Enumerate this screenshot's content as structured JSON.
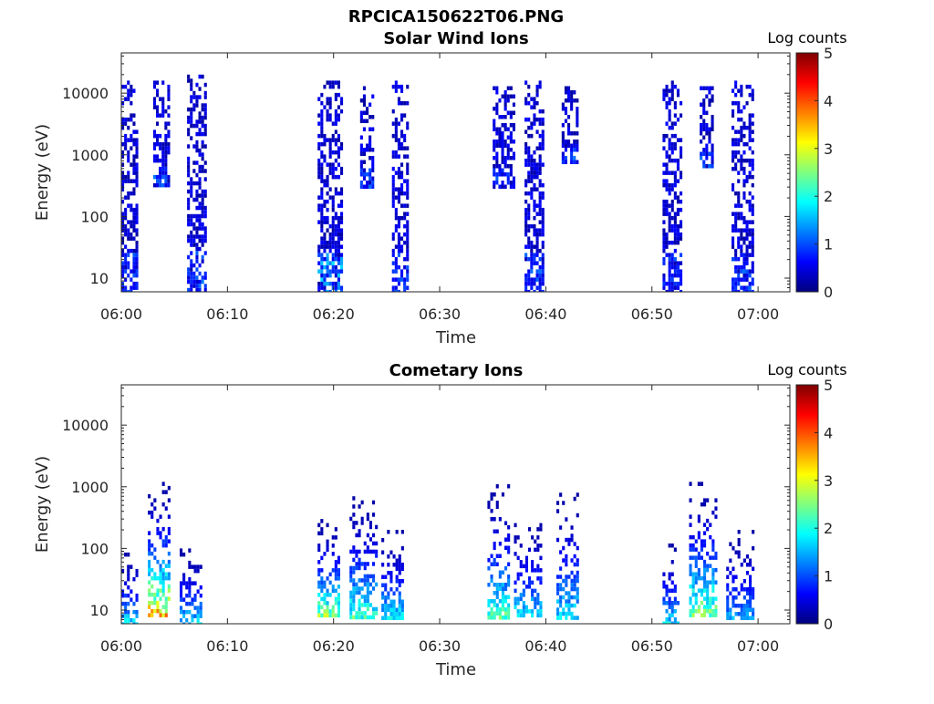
{
  "figure_title": "RPCICA150622T06.PNG",
  "colorbar_stops": [
    "#00007f",
    "#0000ff",
    "#007fff",
    "#00ffff",
    "#7fff7f",
    "#ffff00",
    "#ff7f00",
    "#ff0000",
    "#7f0000"
  ],
  "chart_data": [
    {
      "type": "heatmap",
      "title": "Solar Wind Ions",
      "xlabel": "Time",
      "ylabel": "Energy (eV)",
      "xlim": [
        "06:00",
        "07:03"
      ],
      "ylim": [
        6,
        45000
      ],
      "yscale": "log",
      "xticks": [
        "06:00",
        "06:10",
        "06:20",
        "06:30",
        "06:40",
        "06:50",
        "07:00"
      ],
      "yticks": [
        "10",
        "100",
        "1000",
        "10000"
      ],
      "colorbar": {
        "label": "Log counts",
        "range": [
          0,
          5
        ],
        "ticks": [
          "0",
          "1",
          "2",
          "3",
          "4",
          "5"
        ]
      },
      "bursts": [
        {
          "t_start": 0.0,
          "t_end": 1.5,
          "e_min": 6,
          "e_max": 16000,
          "peak_log_counts": 1
        },
        {
          "t_start": 3.0,
          "t_end": 4.5,
          "e_min": 300,
          "e_max": 16000,
          "peak_log_counts": 1
        },
        {
          "t_start": 6.2,
          "t_end": 7.8,
          "e_min": 6,
          "e_max": 20000,
          "peak_log_counts": 1
        },
        {
          "t_start": 18.5,
          "t_end": 20.8,
          "e_min": 6,
          "e_max": 16000,
          "peak_log_counts": 2
        },
        {
          "t_start": 22.5,
          "t_end": 23.8,
          "e_min": 300,
          "e_max": 13000,
          "peak_log_counts": 1
        },
        {
          "t_start": 25.5,
          "t_end": 27.0,
          "e_min": 6,
          "e_max": 16000,
          "peak_log_counts": 1
        },
        {
          "t_start": 35.0,
          "t_end": 37.0,
          "e_min": 300,
          "e_max": 13000,
          "peak_log_counts": 1
        },
        {
          "t_start": 38.0,
          "t_end": 39.8,
          "e_min": 6,
          "e_max": 16000,
          "peak_log_counts": 1
        },
        {
          "t_start": 41.5,
          "t_end": 43.0,
          "e_min": 800,
          "e_max": 13000,
          "peak_log_counts": 1
        },
        {
          "t_start": 51.0,
          "t_end": 52.8,
          "e_min": 6,
          "e_max": 16000,
          "peak_log_counts": 1
        },
        {
          "t_start": 54.5,
          "t_end": 55.8,
          "e_min": 700,
          "e_max": 13000,
          "peak_log_counts": 1
        },
        {
          "t_start": 57.5,
          "t_end": 59.5,
          "e_min": 6,
          "e_max": 16000,
          "peak_log_counts": 1
        }
      ]
    },
    {
      "type": "heatmap",
      "title": "Cometary Ions",
      "xlabel": "Time",
      "ylabel": "Energy (eV)",
      "xlim": [
        "06:00",
        "07:03"
      ],
      "ylim": [
        6,
        45000
      ],
      "yscale": "log",
      "xticks": [
        "06:00",
        "06:10",
        "06:20",
        "06:30",
        "06:40",
        "06:50",
        "07:00"
      ],
      "yticks": [
        "10",
        "100",
        "1000",
        "10000"
      ],
      "colorbar": {
        "label": "Log counts",
        "range": [
          0,
          5
        ],
        "ticks": [
          "0",
          "1",
          "2",
          "3",
          "4",
          "5"
        ]
      },
      "bursts": [
        {
          "t_start": 0.0,
          "t_end": 1.5,
          "e_min": 6,
          "e_max": 100,
          "peak_log_counts": 2
        },
        {
          "t_start": 2.5,
          "t_end": 4.5,
          "e_min": 8,
          "e_max": 1200,
          "peak_log_counts": 4
        },
        {
          "t_start": 5.5,
          "t_end": 7.5,
          "e_min": 6,
          "e_max": 100,
          "peak_log_counts": 2
        },
        {
          "t_start": 18.5,
          "t_end": 20.5,
          "e_min": 8,
          "e_max": 300,
          "peak_log_counts": 3
        },
        {
          "t_start": 21.5,
          "t_end": 24.0,
          "e_min": 8,
          "e_max": 700,
          "peak_log_counts": 2.5
        },
        {
          "t_start": 24.5,
          "t_end": 26.5,
          "e_min": 8,
          "e_max": 200,
          "peak_log_counts": 2
        },
        {
          "t_start": 34.5,
          "t_end": 36.5,
          "e_min": 8,
          "e_max": 1100,
          "peak_log_counts": 2.5
        },
        {
          "t_start": 37.0,
          "t_end": 39.5,
          "e_min": 8,
          "e_max": 300,
          "peak_log_counts": 2
        },
        {
          "t_start": 41.0,
          "t_end": 43.0,
          "e_min": 8,
          "e_max": 800,
          "peak_log_counts": 2
        },
        {
          "t_start": 51.0,
          "t_end": 52.5,
          "e_min": 6,
          "e_max": 120,
          "peak_log_counts": 2
        },
        {
          "t_start": 53.5,
          "t_end": 56.0,
          "e_min": 8,
          "e_max": 1200,
          "peak_log_counts": 3
        },
        {
          "t_start": 57.0,
          "t_end": 59.5,
          "e_min": 8,
          "e_max": 200,
          "peak_log_counts": 1.5
        }
      ]
    }
  ]
}
